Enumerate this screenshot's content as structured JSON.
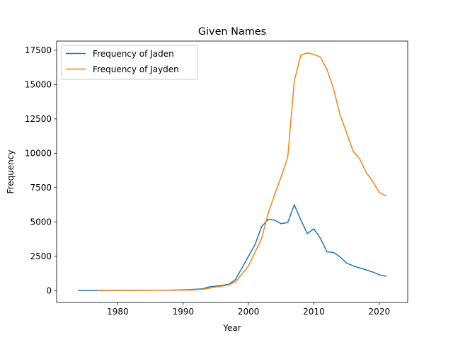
{
  "chart_data": {
    "type": "line",
    "title": "Given Names",
    "xlabel": "Year",
    "ylabel": "Frequency",
    "xlim": [
      1970.65,
      2024.35
    ],
    "ylim": [
      -864.5,
      18164.5
    ],
    "x_ticks": [
      1980,
      1990,
      2000,
      2010,
      2020
    ],
    "y_ticks": [
      0,
      2500,
      5000,
      7500,
      10000,
      12500,
      15000,
      17500
    ],
    "legend_position": "top-left",
    "grid": false,
    "series": [
      {
        "name": "Frequency of Jaden",
        "color": "#1f77b4",
        "x": [
          1974,
          1977,
          1983,
          1988,
          1991,
          1993,
          1994,
          1995,
          1996,
          1997,
          1998,
          1999,
          2000,
          2001,
          2002,
          2003,
          2004,
          2005,
          2006,
          2007,
          2008,
          2009,
          2010,
          2011,
          2012,
          2013,
          2014,
          2015,
          2016,
          2017,
          2018,
          2019,
          2020,
          2021
        ],
        "y": [
          10,
          10,
          20,
          30,
          70,
          130,
          270,
          330,
          380,
          470,
          800,
          1650,
          2500,
          3350,
          4650,
          5180,
          5130,
          4870,
          4950,
          6250,
          5150,
          4150,
          4500,
          3800,
          2820,
          2780,
          2450,
          2000,
          1800,
          1650,
          1500,
          1350,
          1150,
          1050
        ]
      },
      {
        "name": "Frequency of Jayden",
        "color": "#ff7f0e",
        "x": [
          1977,
          1983,
          1988,
          1991,
          1993,
          1994,
          1995,
          1996,
          1997,
          1998,
          1999,
          2000,
          2001,
          2002,
          2003,
          2004,
          2005,
          2006,
          2007,
          2008,
          2009,
          2010,
          2011,
          2012,
          2013,
          2014,
          2015,
          2016,
          2017,
          2018,
          2019,
          2020,
          2021
        ],
        "y": [
          20,
          20,
          30,
          40,
          90,
          170,
          260,
          330,
          420,
          640,
          1200,
          1800,
          2800,
          3800,
          5600,
          7000,
          8300,
          9700,
          15250,
          17150,
          17300,
          17200,
          17000,
          16100,
          14700,
          12800,
          11500,
          10150,
          9600,
          8600,
          7950,
          7150,
          6900
        ]
      }
    ]
  }
}
